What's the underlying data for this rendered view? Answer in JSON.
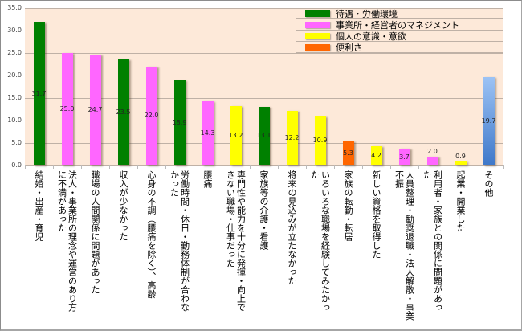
{
  "chart_data": {
    "type": "bar",
    "title": "",
    "xlabel": "",
    "ylabel": "",
    "ylim": [
      0,
      35
    ],
    "yticks": [
      "0.0",
      "5.0",
      "10.0",
      "15.0",
      "20.0",
      "25.0",
      "30.0",
      "35.0"
    ],
    "grid": true,
    "legend_position": "top-right",
    "legend": [
      {
        "label": "待遇・労働環境",
        "color": "#008000"
      },
      {
        "label": "事業所・経営者のマネジメント",
        "color": "#ff66ff"
      },
      {
        "label": "個人の意識・意欲",
        "color": "#ffff00"
      },
      {
        "label": "便利さ",
        "color": "#ff6600"
      }
    ],
    "categories": [
      "結婚・出産・育児",
      "法人・事業所の理念や運営のあり方に不満があった",
      "職場の人間関係に問題があった",
      "収入が少なかった",
      "心身の不調（腰痛を除く）、高齢",
      "労働時間・休日・勤務体制が合わなかった",
      "腰痛",
      "専門性や能力を十分に発揮・向上できない職場・仕事だった",
      "家族等の介護・看護",
      "将来の見込みが立たなかった",
      "いろいろな職場を経験してみたかった",
      "家族の転勤・転居",
      "新しい資格を取得した",
      "人員整理・勧奨退職・法人解散・事業不振",
      "利用者・家族との関係に問題があった",
      "起業・開業した",
      "その他"
    ],
    "values": [
      31.7,
      25.0,
      24.7,
      23.5,
      22.0,
      18.9,
      14.3,
      13.2,
      13.1,
      12.2,
      10.9,
      5.3,
      4.2,
      3.7,
      2.0,
      0.9,
      19.7
    ],
    "value_labels": [
      "31.7",
      "25.0",
      "24.7",
      "23.5",
      "22.0",
      "18.9",
      "14.3",
      "13.2",
      "13.1",
      "12.2",
      "10.9",
      "5.3",
      "4.2",
      "3.7",
      "2.0",
      "0.9",
      "19.7"
    ],
    "bar_groups": [
      "待遇・労働環境",
      "事業所・経営者のマネジメント",
      "事業所・経営者のマネジメント",
      "待遇・労働環境",
      "事業所・経営者のマネジメント",
      "待遇・労働環境",
      "事業所・経営者のマネジメント",
      "個人の意識・意欲",
      "待遇・労働環境",
      "個人の意識・意欲",
      "個人の意識・意欲",
      "便利さ",
      "個人の意識・意欲",
      "事業所・経営者のマネジメント",
      "事業所・経営者のマネジメント",
      "個人の意識・意欲",
      "その他"
    ],
    "bar_colors": [
      "#008000",
      "#ff66ff",
      "#ff66ff",
      "#008000",
      "#ff66ff",
      "#008000",
      "#ff66ff",
      "#ffff00",
      "#008000",
      "#ffff00",
      "#ffff00",
      "#ff6600",
      "#ffff00",
      "#ff66ff",
      "#ff66ff",
      "#ffff00",
      "#5b8fd6"
    ]
  },
  "xlabels_display": [
    "結婚・出産・育児",
    "法人・事業所の理念や運営のあり方\nに不満があった",
    "職場の人間関係に問題があった",
    "収入が少なかった",
    "心身の不調（腰痛を除く）、高齢",
    "労働時間・休日・勤務体制が合わな\nかった",
    "腰痛",
    "専門性や能力を十分に発揮・向上で\nきない職場・仕事だった",
    "家族等の介護・看護",
    "将来の見込みが立たなかった",
    "いろいろな職場を経験してみたかっ\nた",
    "家族の転勤・転居",
    "新しい資格を取得した",
    "人員整理・勧奨退職・法人解散・事業\n不振",
    "利用者・家族との関係に問題があっ\nた",
    "起業・開業した",
    "その他"
  ]
}
